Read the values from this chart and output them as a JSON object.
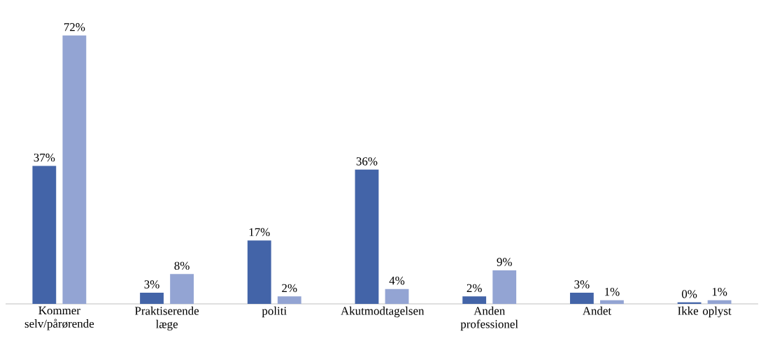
{
  "chart_data": {
    "type": "bar",
    "categories": [
      "Kommer selv/pårørende",
      "Praktiserende læge",
      "politi",
      "Akutmodtagelsen",
      "Anden professionel",
      "Andet",
      "Ikke oplyst"
    ],
    "series": [
      {
        "color": "#4364a8",
        "values": [
          37,
          3,
          17,
          36,
          2,
          3,
          0.4
        ],
        "value_labels": [
          "37%",
          "3%",
          "17%",
          "36%",
          "2%",
          "3%",
          "0%"
        ]
      },
      {
        "color": "#93a4d3",
        "values": [
          72,
          8,
          2,
          4,
          9,
          1,
          1
        ],
        "value_labels": [
          "72%",
          "8%",
          "2%",
          "4%",
          "9%",
          "1%",
          "1%"
        ]
      }
    ]
  }
}
